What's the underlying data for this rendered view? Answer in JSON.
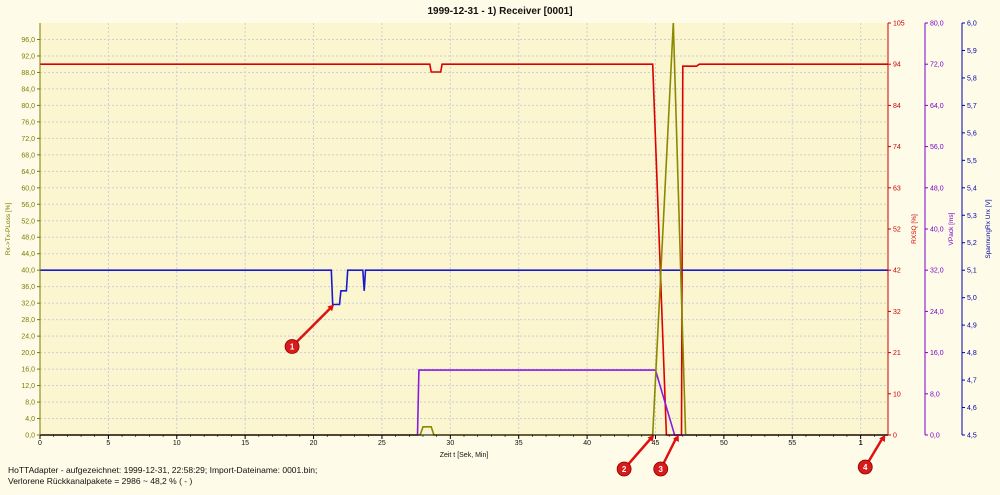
{
  "window": {
    "title": "1999-12-31 - 1) Receiver [0001]"
  },
  "footer": {
    "line1": "HoTTAdapter - aufgezeichnet: 1999-12-31, 22:58:29; Import-Dateiname: 0001.bin;",
    "line2": "Verlorene Rückkanalpakete = 2986 ~ 48,2 % ( - )"
  },
  "chart_data": {
    "type": "line",
    "title": "1999-12-31 - 1) Receiver [0001]",
    "xlabel": "Zeit  t  [Sek, Min]",
    "xlim": [
      0,
      62
    ],
    "grid": true,
    "background_color": "#fbf5d0",
    "x_ticks": [
      "0",
      "5",
      "10",
      "15",
      "20",
      "25",
      "30",
      "35",
      "40",
      "45",
      "50",
      "55",
      "1"
    ],
    "x_tick_values": [
      0,
      5,
      10,
      15,
      20,
      25,
      30,
      35,
      40,
      45,
      50,
      55,
      60
    ],
    "axes": [
      {
        "id": "rx",
        "side": "left",
        "label": "Rx->Tx-PLoss  [%]",
        "color": "#7b7b00",
        "ylim": [
          0,
          100
        ],
        "ticks": [
          "0,0",
          "4,0",
          "8,0",
          "12,0",
          "16,0",
          "20,0",
          "24,0",
          "28,0",
          "32,0",
          "36,0",
          "40,0",
          "44,0",
          "48,0",
          "52,0",
          "56,0",
          "60,0",
          "64,0",
          "68,0",
          "72,0",
          "76,0",
          "80,0",
          "84,0",
          "88,0",
          "92,0",
          "96,0"
        ],
        "tick_values": [
          0,
          4,
          8,
          12,
          16,
          20,
          24,
          28,
          32,
          36,
          40,
          44,
          48,
          52,
          56,
          60,
          64,
          68,
          72,
          76,
          80,
          84,
          88,
          92,
          96
        ]
      },
      {
        "id": "rxsq",
        "side": "right",
        "label": "RXSQ  [%]",
        "color": "#cc0000",
        "ylim": [
          0,
          105
        ],
        "ticks": [
          "0",
          "10",
          "21",
          "32",
          "42",
          "52",
          "63",
          "74",
          "84",
          "94",
          "105"
        ],
        "tick_values": [
          0,
          10.5,
          21,
          31.5,
          42,
          52.5,
          63,
          73.5,
          84,
          94.5,
          105
        ]
      },
      {
        "id": "vpack",
        "side": "right",
        "label": "VPack  [ms]",
        "color": "#7a00cc",
        "ylim": [
          0,
          80
        ],
        "ticks": [
          "0,0",
          "8,0",
          "16,0",
          "24,0",
          "32,0",
          "40,0",
          "48,0",
          "56,0",
          "64,0",
          "72,0",
          "80,0"
        ],
        "tick_values": [
          0,
          8,
          16,
          24,
          32,
          40,
          48,
          56,
          64,
          72,
          80
        ]
      },
      {
        "id": "volt",
        "side": "right",
        "label": "SpannungRx  Urx  [V]",
        "color": "#0000aa",
        "ylim": [
          4.5,
          6.0
        ],
        "ticks": [
          "4,5",
          "4,6",
          "4,7",
          "4,8",
          "4,9",
          "5,0",
          "5,1",
          "5,2",
          "5,3",
          "5,4",
          "5,5",
          "5,6",
          "5,7",
          "5,8",
          "5,9",
          "6,0"
        ],
        "tick_values": [
          4.5,
          4.6,
          4.7,
          4.8,
          4.9,
          5.0,
          5.1,
          5.2,
          5.3,
          5.4,
          5.5,
          5.6,
          5.7,
          5.8,
          5.9,
          6.0
        ]
      }
    ],
    "series": [
      {
        "axis": "rxsq",
        "color": "#dd0000",
        "x": [
          0,
          28.5,
          28.6,
          29.3,
          29.4,
          44.8,
          45.8,
          46.0,
          46.9,
          47.0,
          48.0,
          48.2,
          62
        ],
        "y": [
          94.5,
          94.5,
          92.5,
          92.5,
          94.5,
          94.5,
          0,
          0,
          0,
          94,
          94,
          94.5,
          94.5
        ]
      },
      {
        "axis": "volt",
        "color": "#1a1acc",
        "x": [
          0,
          21.3,
          21.4,
          21.9,
          22.0,
          22.4,
          22.5,
          23.6,
          23.7,
          23.8,
          62
        ],
        "y": [
          5.1,
          5.1,
          4.975,
          4.975,
          5.025,
          5.025,
          5.1,
          5.1,
          5.025,
          5.1,
          5.1
        ]
      },
      {
        "axis": "vpack",
        "color": "#8a1ae0",
        "x": [
          0,
          27.6,
          27.7,
          45.0,
          46.4,
          62
        ],
        "y": [
          0,
          0,
          12.6,
          12.6,
          0,
          0
        ]
      },
      {
        "axis": "rx",
        "color": "#8a8a00",
        "x": [
          0,
          27.8,
          28.0,
          28.6,
          28.8,
          44.8,
          46.3,
          47.2,
          62
        ],
        "y": [
          0,
          0,
          2,
          2,
          0,
          0,
          100,
          0,
          0
        ]
      }
    ],
    "annotations": [
      {
        "label": "1",
        "x": 21.5,
        "y_axis": "volt",
        "y": 4.975
      },
      {
        "label": "2",
        "x": 44.9,
        "y_axis": "rx",
        "y": 0
      },
      {
        "label": "3",
        "x": 46.7,
        "y_axis": "rx",
        "y": 0
      },
      {
        "label": "4",
        "x": 61.8,
        "y_axis": "rx",
        "y": 0
      }
    ]
  }
}
